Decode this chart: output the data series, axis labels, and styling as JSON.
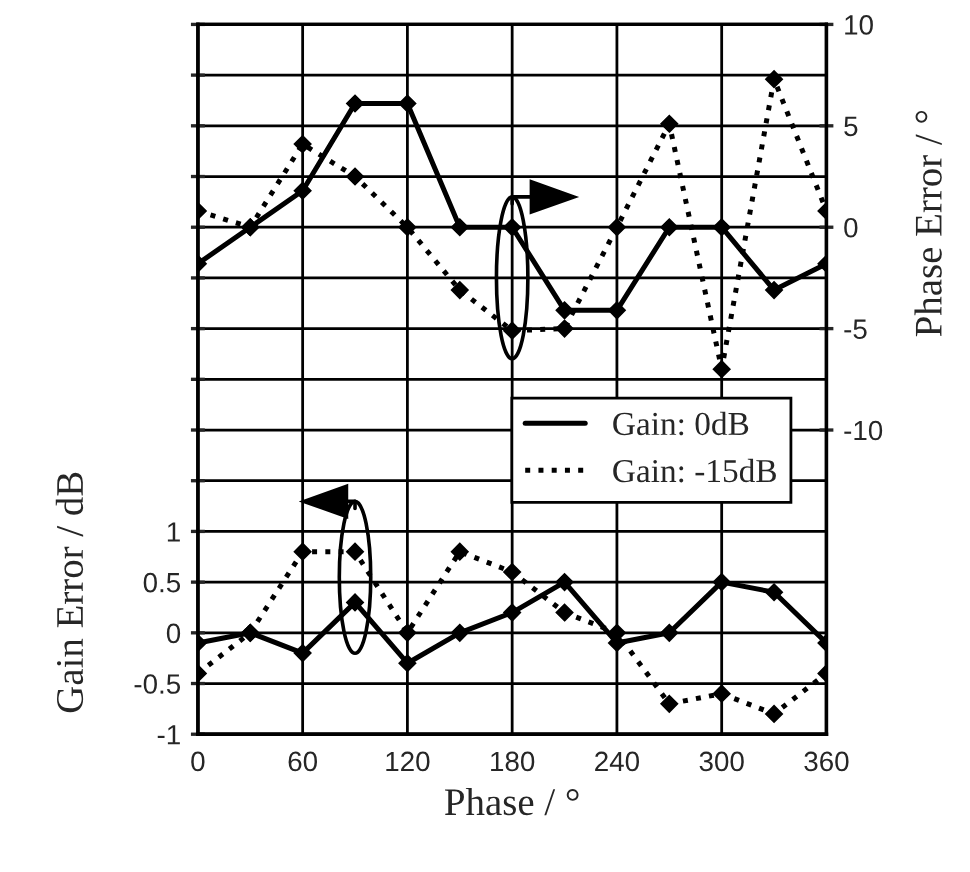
{
  "chart_data": {
    "type": "line",
    "xlabel": "Phase / °",
    "ylabel": "Gain Error / dB",
    "y2label": "Phase Error / °",
    "x": [
      0,
      30,
      60,
      90,
      120,
      150,
      180,
      210,
      240,
      270,
      300,
      330,
      360
    ],
    "series": [
      {
        "name": "Gain: 0dB",
        "color": "#000000",
        "axis": "y2",
        "line_style": "solid",
        "values": [
          -1.8,
          0,
          1.8,
          6.1,
          6.1,
          0,
          0,
          -4.1,
          -4.1,
          0,
          0,
          -3.1,
          -1.8
        ]
      },
      {
        "name": "Gain: -15dB",
        "color": "#000000",
        "axis": "y2",
        "line_style": "dotted",
        "values": [
          0.8,
          0,
          4.1,
          2.5,
          0,
          -3.1,
          -5.1,
          -5,
          0,
          5.1,
          -7,
          7.3,
          0.8
        ]
      },
      {
        "color": "#000000",
        "line_style": "solid",
        "values": [
          -0.1,
          0,
          -0.2,
          0.3,
          -0.3,
          0,
          0.2,
          0.5,
          -0.1,
          0,
          0.5,
          0.4,
          -0.1
        ]
      },
      {
        "color": "#000000",
        "line_style": "dotted",
        "values": [
          -0.4,
          0,
          0.8,
          0.8,
          0,
          0.8,
          0.6,
          0.2,
          0,
          -0.7,
          -0.6,
          -0.8,
          -0.4
        ]
      }
    ],
    "xlim": [
      0,
      360
    ],
    "xticks": [
      0,
      60,
      120,
      180,
      240,
      300,
      360
    ],
    "ylim": [
      -1,
      6
    ],
    "yticks": [
      -1,
      -0.5,
      0,
      0.5,
      1,
      {
        "value": 1.5,
        "label": null
      },
      {
        "value": 2,
        "label": null
      },
      {
        "value": 2.5,
        "label": null
      },
      {
        "value": 3,
        "label": null
      },
      {
        "value": 3.5,
        "label": null
      },
      {
        "value": 4,
        "label": null
      },
      {
        "value": 4.5,
        "label": null
      },
      {
        "value": 5,
        "label": null
      },
      {
        "value": 5.5,
        "label": null
      },
      {
        "value": 6,
        "label": null
      }
    ],
    "y2lim": [
      -25,
      10
    ],
    "y2ticks": [
      -10,
      -5,
      0,
      5,
      10
    ],
    "grid": true,
    "legend": "center right",
    "marker": "diamond"
  }
}
